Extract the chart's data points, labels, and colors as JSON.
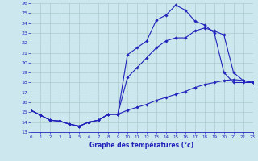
{
  "xlabel": "Graphe des températures (°c)",
  "xlim": [
    0,
    23
  ],
  "ylim": [
    13,
    26
  ],
  "yticks": [
    13,
    14,
    15,
    16,
    17,
    18,
    19,
    20,
    21,
    22,
    23,
    24,
    25,
    26
  ],
  "xticks": [
    0,
    1,
    2,
    3,
    4,
    5,
    6,
    7,
    8,
    9,
    10,
    11,
    12,
    13,
    14,
    15,
    16,
    17,
    18,
    19,
    20,
    21,
    22,
    23
  ],
  "bg_color": "#cce8ee",
  "grid_color": "#aacccc",
  "line_color": "#2222bb",
  "line1_y": [
    15.2,
    14.7,
    14.2,
    14.1,
    13.8,
    13.6,
    14.0,
    14.2,
    14.8,
    14.8,
    20.8,
    21.5,
    22.2,
    24.3,
    24.8,
    25.8,
    25.3,
    24.2,
    23.8,
    23.0,
    19.0,
    18.0,
    18.0,
    18.0
  ],
  "line2_y": [
    15.2,
    14.7,
    14.2,
    14.1,
    13.8,
    13.6,
    14.0,
    14.2,
    14.8,
    14.8,
    18.5,
    19.5,
    20.5,
    21.5,
    22.2,
    22.5,
    22.5,
    23.2,
    23.5,
    23.2,
    22.8,
    19.0,
    18.2,
    18.0
  ],
  "line3_y": [
    15.2,
    14.7,
    14.2,
    14.1,
    13.8,
    13.6,
    14.0,
    14.2,
    14.8,
    14.8,
    15.2,
    15.5,
    15.8,
    16.2,
    16.5,
    16.8,
    17.1,
    17.5,
    17.8,
    18.0,
    18.2,
    18.3,
    18.2,
    18.0
  ]
}
